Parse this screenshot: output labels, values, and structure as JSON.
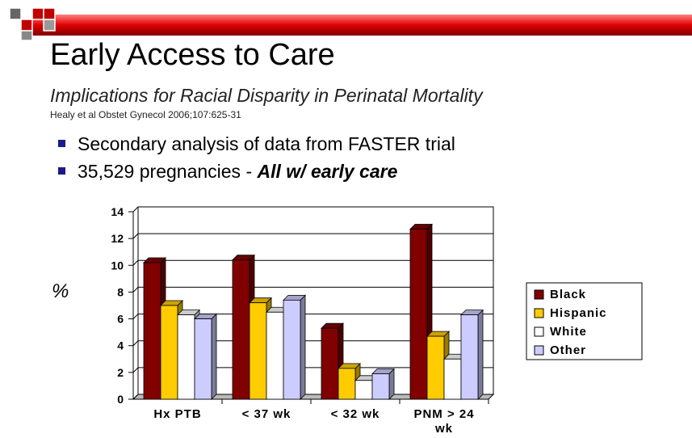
{
  "title": "Early Access to Care",
  "subtitle": "Implications for Racial Disparity in Perinatal Mortality",
  "citation": "Healy et al Obstet Gynecol 2006;107:625-31",
  "bullets": [
    {
      "text": "Secondary analysis of data from FASTER trial"
    },
    {
      "text": "35,529 pregnancies - ",
      "emphasis": "All w/ early care"
    }
  ],
  "chart_data": {
    "type": "bar",
    "ylabel": "%",
    "categories": [
      "Hx PTB",
      "< 37 wk",
      "< 32 wk",
      "PNM > 24 wk"
    ],
    "series": [
      {
        "name": "Black",
        "color": "#800000",
        "values": [
          10.2,
          10.4,
          5.3,
          12.7
        ]
      },
      {
        "name": "Hispanic",
        "color": "#ffcc00",
        "values": [
          7.0,
          7.2,
          2.3,
          4.7
        ]
      },
      {
        "name": "White",
        "color": "#ffffff",
        "values": [
          6.3,
          6.5,
          1.4,
          3.0
        ]
      },
      {
        "name": "Other",
        "color": "#ccccff",
        "values": [
          6.0,
          7.4,
          1.9,
          6.3
        ]
      }
    ],
    "ylim": [
      0,
      14
    ],
    "yticks": [
      0,
      2,
      4,
      6,
      8,
      10,
      12,
      14
    ],
    "grid": true,
    "legend": "right"
  }
}
